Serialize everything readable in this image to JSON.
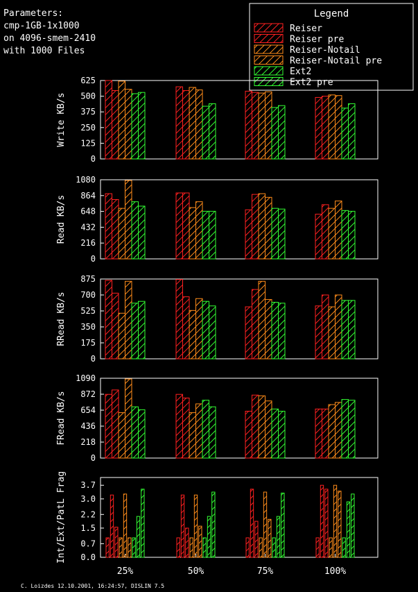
{
  "params": {
    "lines": [
      "Parameters:",
      "cmp-1GB-1x1000",
      "on 4096-smem-2410",
      "with 1000 Files"
    ]
  },
  "legend": {
    "title": "Legend",
    "items": [
      {
        "label": "Reiser",
        "color": "#ff2020"
      },
      {
        "label": "Reiser pre",
        "color": "#ff2020"
      },
      {
        "label": "Reiser-Notail",
        "color": "#ff8c1a"
      },
      {
        "label": "Reiser-Notail pre",
        "color": "#ff8c1a"
      },
      {
        "label": "Ext2",
        "color": "#33ff33"
      },
      {
        "label": "Ext2 pre",
        "color": "#33ff33"
      }
    ]
  },
  "footer": "C. Loizdes 12.10.2001, 16:24:57, DISLIN 7.5",
  "chart_data": {
    "type": "bar",
    "categories": [
      "25%",
      "50%",
      "75%",
      "100%"
    ],
    "series_names": [
      "Reiser",
      "Reiser pre",
      "Reiser-Notail",
      "Reiser-Notail pre",
      "Ext2",
      "Ext2 pre"
    ],
    "colors": [
      "#ff2020",
      "#ff2020",
      "#ff8c1a",
      "#ff8c1a",
      "#33ff33",
      "#33ff33"
    ],
    "panels": [
      {
        "ylabel": "Write KB/s",
        "ylim": [
          0,
          625
        ],
        "yticks": [
          "0",
          "125",
          "250",
          "375",
          "500",
          "625"
        ],
        "values": [
          [
            625,
            545,
            620,
            555,
            520,
            530
          ],
          [
            575,
            545,
            570,
            550,
            420,
            440
          ],
          [
            540,
            530,
            525,
            535,
            410,
            425
          ],
          [
            490,
            500,
            510,
            505,
            405,
            440
          ]
        ]
      },
      {
        "ylabel": "Read KB/s",
        "ylim": [
          0,
          1080
        ],
        "yticks": [
          "0",
          "216",
          "432",
          "648",
          "864",
          "1080"
        ],
        "values": [
          [
            890,
            810,
            690,
            1070,
            780,
            720
          ],
          [
            900,
            900,
            700,
            780,
            650,
            650
          ],
          [
            670,
            880,
            890,
            840,
            690,
            680
          ],
          [
            610,
            740,
            690,
            790,
            660,
            650
          ]
        ]
      },
      {
        "ylabel": "RRead KB/s",
        "ylim": [
          0,
          875
        ],
        "yticks": [
          "0",
          "175",
          "350",
          "525",
          "700",
          "875"
        ],
        "values": [
          [
            860,
            720,
            500,
            850,
            610,
            630
          ],
          [
            870,
            680,
            530,
            660,
            630,
            580
          ],
          [
            570,
            760,
            850,
            650,
            620,
            610
          ],
          [
            580,
            700,
            570,
            700,
            640,
            640
          ]
        ]
      },
      {
        "ylabel": "FRead KB/s",
        "ylim": [
          0,
          1090
        ],
        "yticks": [
          "0",
          "218",
          "436",
          "654",
          "872",
          "1090"
        ],
        "values": [
          [
            870,
            930,
            620,
            1080,
            700,
            660
          ],
          [
            870,
            820,
            620,
            740,
            790,
            700
          ],
          [
            640,
            860,
            850,
            780,
            670,
            640
          ],
          [
            670,
            670,
            730,
            760,
            800,
            790
          ]
        ]
      },
      {
        "ylabel": "Int/Ext/PatL Frag",
        "ylim": [
          0,
          4.1
        ],
        "yticks": [
          "0.0",
          "0.7",
          "1.5",
          "2.2",
          "3.0",
          "3.7"
        ],
        "sub": true,
        "values": [
          [
            [
              1.0,
              3.2,
              1.55
            ],
            [
              1.0,
              3.25,
              1.0
            ],
            [
              1.0,
              2.1,
              3.5
            ]
          ],
          [
            [
              1.0,
              3.2,
              1.5
            ],
            [
              1.0,
              3.2,
              1.6
            ],
            [
              1.0,
              2.1,
              3.35
            ]
          ],
          [
            [
              1.0,
              3.5,
              1.85
            ],
            [
              1.0,
              3.35,
              1.95
            ],
            [
              1.0,
              2.1,
              3.3
            ]
          ],
          [
            [
              1.0,
              3.7,
              3.5
            ],
            [
              1.0,
              3.7,
              3.4
            ],
            [
              1.0,
              2.85,
              3.25
            ]
          ]
        ]
      }
    ]
  }
}
